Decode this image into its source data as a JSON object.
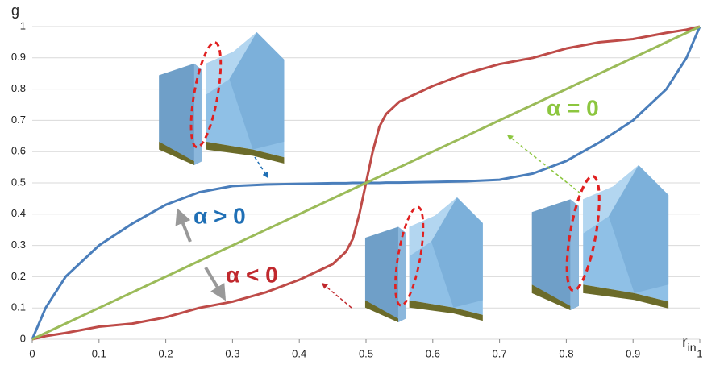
{
  "chart_data": {
    "type": "line",
    "y_label": "g",
    "x_label": "r",
    "x_label_subscript": "in",
    "x": [
      0,
      0.02,
      0.05,
      0.1,
      0.15,
      0.2,
      0.25,
      0.3,
      0.35,
      0.4,
      0.45,
      0.47,
      0.48,
      0.49,
      0.5,
      0.51,
      0.52,
      0.53,
      0.55,
      0.6,
      0.65,
      0.7,
      0.75,
      0.8,
      0.85,
      0.9,
      0.95,
      0.98,
      1
    ],
    "series": [
      {
        "color": "#4a7ebb",
        "values": [
          0,
          0.1,
          0.2,
          0.3,
          0.37,
          0.43,
          0.47,
          0.49,
          0.495,
          0.497,
          0.499,
          0.499,
          0.5,
          0.5,
          0.5,
          0.5,
          0.5,
          0.501,
          0.501,
          0.503,
          0.505,
          0.51,
          0.53,
          0.57,
          0.63,
          0.7,
          0.8,
          0.9,
          1
        ]
      },
      {
        "color": "#be4b48",
        "values": [
          0,
          0.01,
          0.02,
          0.04,
          0.05,
          0.07,
          0.1,
          0.12,
          0.15,
          0.19,
          0.24,
          0.28,
          0.32,
          0.4,
          0.5,
          0.6,
          0.68,
          0.72,
          0.76,
          0.81,
          0.85,
          0.88,
          0.9,
          0.93,
          0.95,
          0.96,
          0.98,
          0.99,
          1
        ]
      },
      {
        "color": "#9bbb59",
        "values": [
          0,
          0.02,
          0.05,
          0.1,
          0.15,
          0.2,
          0.25,
          0.3,
          0.35,
          0.4,
          0.45,
          0.47,
          0.48,
          0.49,
          0.5,
          0.51,
          0.52,
          0.53,
          0.55,
          0.6,
          0.65,
          0.7,
          0.75,
          0.8,
          0.85,
          0.9,
          0.95,
          0.98,
          1
        ]
      }
    ],
    "annotations": [
      {
        "text": "α > 0",
        "color": "#1f6fb5"
      },
      {
        "text": "α < 0",
        "color": "#c0282d"
      },
      {
        "text": "α = 0",
        "color": "#8cc63f"
      }
    ],
    "xlim": [
      0,
      1
    ],
    "ylim": [
      0,
      1
    ],
    "xticks": [
      0,
      0.1,
      0.2,
      0.3,
      0.4,
      0.5,
      0.6,
      0.7,
      0.8,
      0.9,
      1
    ],
    "yticks": [
      0,
      0.1,
      0.2,
      0.3,
      0.4,
      0.5,
      0.6,
      0.7,
      0.8,
      0.9,
      1
    ],
    "grid": true
  }
}
